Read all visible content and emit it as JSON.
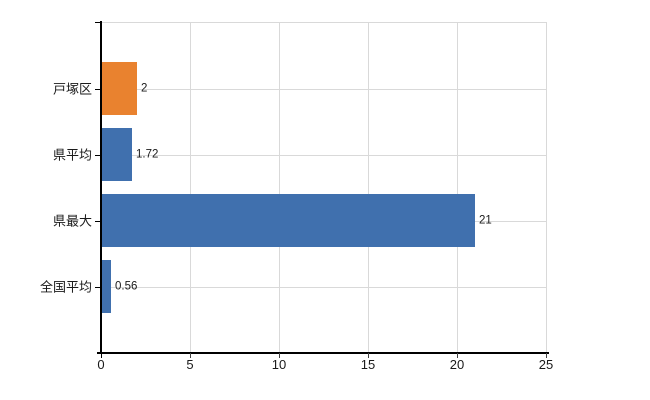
{
  "chart_data": {
    "type": "bar",
    "orientation": "horizontal",
    "title": "",
    "xlabel": "",
    "ylabel": "",
    "categories": [
      "戸塚区",
      "県平均",
      "県最大",
      "全国平均"
    ],
    "values": [
      2,
      1.72,
      21,
      0.56
    ],
    "value_labels": [
      "2",
      "1.72",
      "21",
      "0.56"
    ],
    "bar_colors": [
      "#E9822F",
      "#4070AE",
      "#4070AE",
      "#4070AE"
    ],
    "xlim": [
      0,
      25
    ],
    "xticks": [
      0,
      5,
      10,
      15,
      20,
      25
    ],
    "xtick_labels": [
      "0",
      "5",
      "10",
      "15",
      "20",
      "25"
    ],
    "grid": true,
    "legend": false,
    "colors": {
      "grid": "#D9D9D9",
      "plot_border": "#D9D9D9",
      "axis": "#000000",
      "tick": "#404040",
      "text": "#1A1A1A",
      "background": "#FFFFFF"
    }
  }
}
